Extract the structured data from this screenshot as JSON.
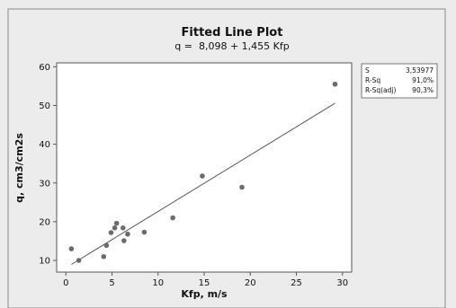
{
  "chart_data": {
    "type": "scatter",
    "title": "Fitted Line Plot",
    "subtitle": "q =  8,098 + 1,455 Kfp",
    "xlabel": "Kfp, m/s",
    "ylabel": "q, cm3/cm2s",
    "xlim": [
      0,
      30
    ],
    "ylim": [
      10,
      60
    ],
    "x_ticks": [
      0,
      5,
      10,
      15,
      20,
      25,
      30
    ],
    "y_ticks": [
      10,
      20,
      30,
      40,
      50,
      60
    ],
    "grid": false,
    "points": [
      {
        "x": 0.6,
        "y": 13.0
      },
      {
        "x": 1.4,
        "y": 10.0
      },
      {
        "x": 4.1,
        "y": 11.0
      },
      {
        "x": 4.4,
        "y": 13.9
      },
      {
        "x": 4.9,
        "y": 17.2
      },
      {
        "x": 5.3,
        "y": 18.4
      },
      {
        "x": 5.5,
        "y": 19.6
      },
      {
        "x": 6.2,
        "y": 18.4
      },
      {
        "x": 6.3,
        "y": 15.1
      },
      {
        "x": 6.7,
        "y": 16.8
      },
      {
        "x": 8.5,
        "y": 17.3
      },
      {
        "x": 11.6,
        "y": 21.0
      },
      {
        "x": 14.8,
        "y": 31.8
      },
      {
        "x": 19.1,
        "y": 28.9
      },
      {
        "x": 29.2,
        "y": 55.5
      }
    ],
    "fit_line": {
      "intercept": 8.098,
      "slope": 1.455,
      "x_range": [
        0.6,
        29.2
      ]
    },
    "stats": [
      {
        "label": "S",
        "value": "3,53977"
      },
      {
        "label": "R-Sq",
        "value": "91,0%"
      },
      {
        "label": "R-Sq(adj)",
        "value": "90,3%"
      }
    ],
    "colors": {
      "background": "#ececec",
      "plot_area": "#ffffff",
      "points": "#6b6b6b",
      "line": "#555555",
      "border": "#555555"
    }
  }
}
